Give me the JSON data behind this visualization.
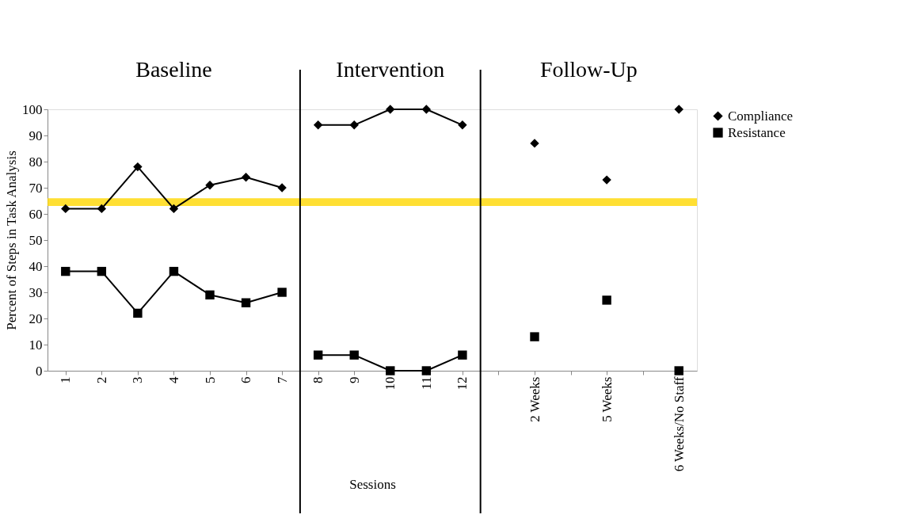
{
  "chart_data": {
    "type": "line",
    "xlabel": "Sessions",
    "ylabel": "Percent of Steps in Task Analysis",
    "categories": [
      "1",
      "2",
      "3",
      "4",
      "5",
      "6",
      "7",
      "8",
      "9",
      "10",
      "11",
      "12",
      null,
      "2 Weeks",
      null,
      "5 Weeks",
      null,
      "6 Weeks/No Staff"
    ],
    "ylim": [
      0,
      100
    ],
    "yticks": [
      0,
      10,
      20,
      30,
      40,
      50,
      60,
      70,
      80,
      90,
      100
    ],
    "series": [
      {
        "name": "Compliance",
        "color": "#000000",
        "marker": "diamond",
        "values": [
          62,
          62,
          78,
          62,
          71,
          74,
          70,
          null,
          null,
          null,
          null,
          null,
          null,
          null,
          null,
          null,
          null,
          null
        ]
      },
      {
        "color": "#000000",
        "marker": "diamond",
        "values": [
          null,
          null,
          null,
          null,
          null,
          null,
          null,
          94,
          94,
          100,
          100,
          94,
          null,
          null,
          null,
          null,
          null,
          null
        ]
      },
      {
        "type": "scatter",
        "color": "#000000",
        "marker": "diamond",
        "values": [
          null,
          null,
          null,
          null,
          null,
          null,
          null,
          null,
          null,
          null,
          null,
          null,
          null,
          87,
          null,
          73,
          null,
          100
        ]
      },
      {
        "name": "Resistance",
        "color": "#000000",
        "marker": "square",
        "values": [
          38,
          38,
          22,
          38,
          29,
          26,
          30,
          null,
          null,
          null,
          null,
          null,
          null,
          null,
          null,
          null,
          null,
          null
        ]
      },
      {
        "color": "#000000",
        "marker": "square",
        "values": [
          null,
          null,
          null,
          null,
          null,
          null,
          null,
          6,
          6,
          0,
          0,
          6,
          null,
          null,
          null,
          null,
          null,
          null
        ]
      },
      {
        "type": "scatter",
        "color": "#000000",
        "marker": "square",
        "values": [
          null,
          null,
          null,
          null,
          null,
          null,
          null,
          null,
          null,
          null,
          null,
          null,
          null,
          13,
          null,
          27,
          null,
          0
        ]
      }
    ],
    "bands": [
      {
        "axis": "y",
        "from": 63,
        "to": 66,
        "color": "#ffd700"
      }
    ],
    "annotations": [
      "Baseline",
      "Intervention",
      "Follow-Up"
    ],
    "grid": false,
    "legend": "right",
    "line_style": "solid"
  }
}
